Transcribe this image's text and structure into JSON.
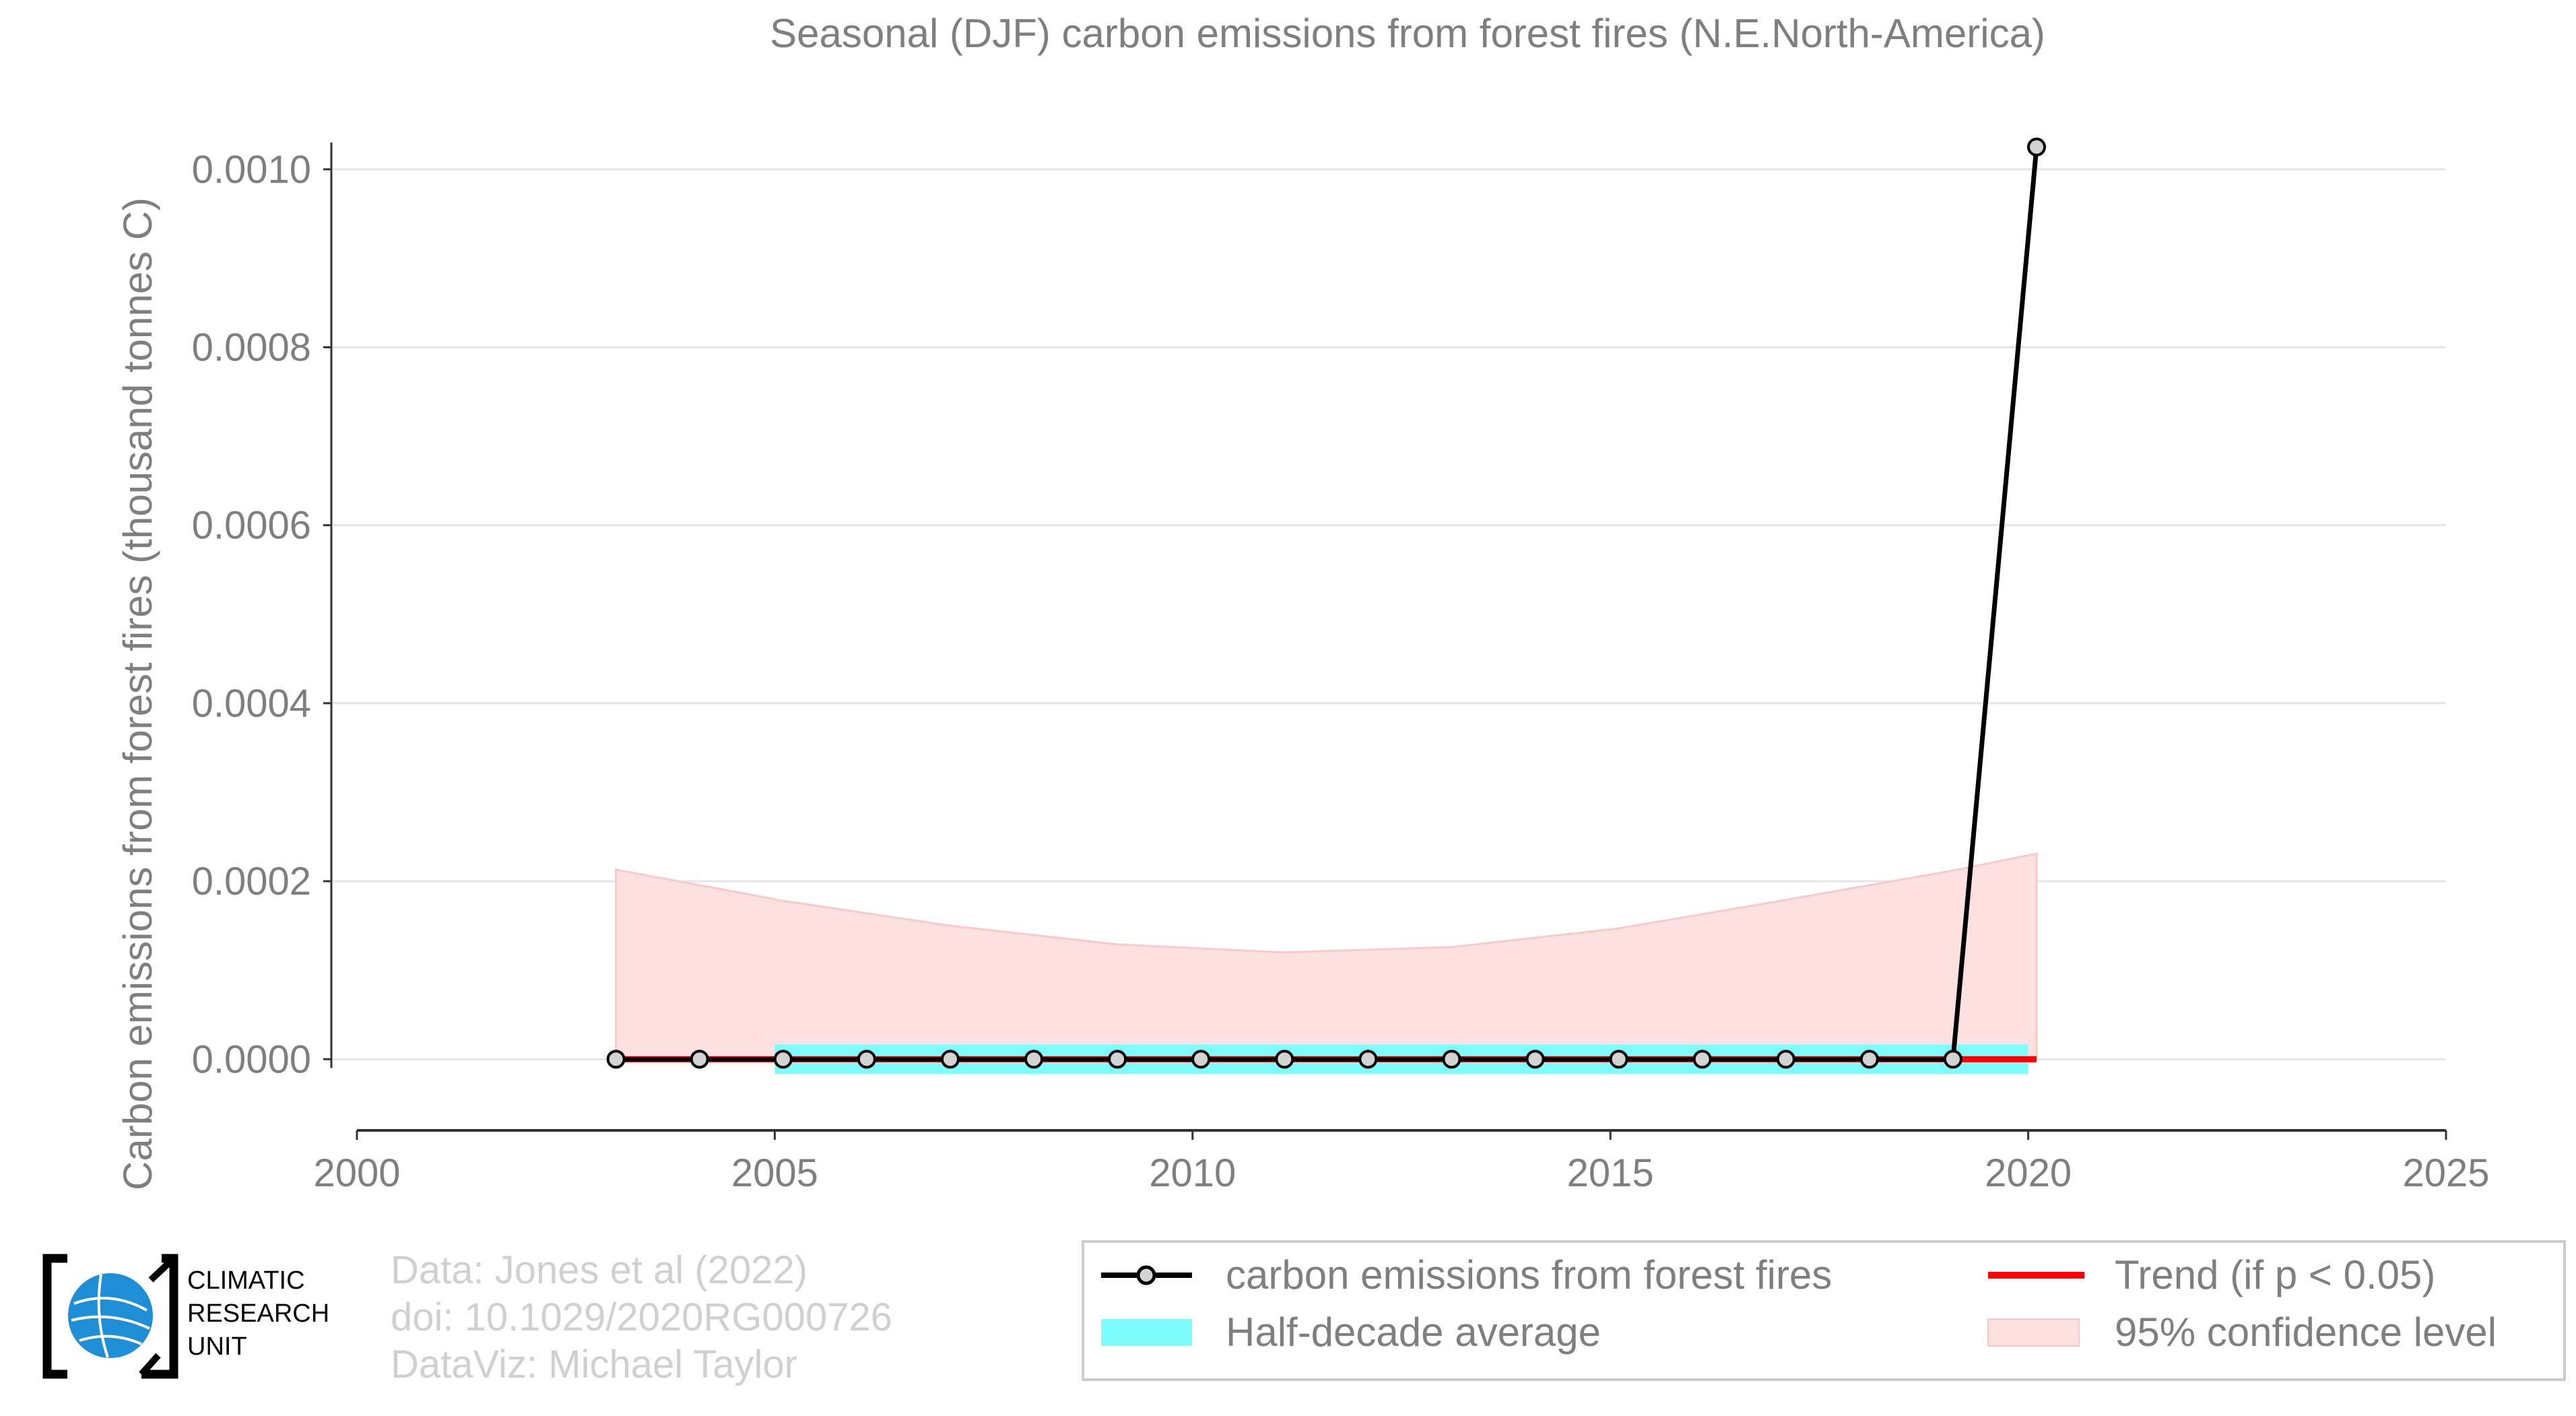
{
  "chart_data": {
    "type": "line",
    "title": "Seasonal (DJF) carbon emissions from forest fires (N.E.North-America)",
    "ylabel": "Carbon emissions from forest fires (thousand tonnes C)",
    "xlabel": "",
    "xlim": [
      2000,
      2025
    ],
    "ylim": [
      -8e-05,
      0.00106
    ],
    "x_ticks": [
      2000,
      2005,
      2010,
      2015,
      2020,
      2025
    ],
    "y_ticks": [
      {
        "value": 0.0,
        "label": "0.0000"
      },
      {
        "value": 0.0002,
        "label": "0.0002"
      },
      {
        "value": 0.0004,
        "label": "0.0004"
      },
      {
        "value": 0.0006,
        "label": "0.0006"
      },
      {
        "value": 0.0008,
        "label": "0.0008"
      },
      {
        "value": 0.001,
        "label": "0.0010"
      }
    ],
    "grid": "horizontal",
    "legend_position": "bottom-right",
    "series": [
      {
        "name": "carbon emissions from forest fires",
        "style": "line-marker",
        "color": "#000000",
        "marker_fill": "#d3d3d3",
        "x": [
          2003.1,
          2004.1,
          2005.1,
          2006.1,
          2007.1,
          2008.1,
          2009.1,
          2010.1,
          2011.1,
          2012.1,
          2013.1,
          2014.1,
          2015.1,
          2016.1,
          2017.1,
          2018.1,
          2019.1,
          2020.1
        ],
        "y": [
          0,
          0,
          0,
          0,
          0,
          0,
          0,
          0,
          0,
          0,
          0,
          0,
          0,
          0,
          0,
          0,
          0,
          0.001025
        ]
      },
      {
        "name": "Half-decade average",
        "style": "band",
        "color": "#7ffdfd",
        "x": [
          2005.0,
          2020.0
        ],
        "y": [
          0,
          0
        ]
      },
      {
        "name": "Trend (if p < 0.05)",
        "style": "line",
        "color": "#ff0000",
        "x": [
          2003.1,
          2020.1
        ],
        "y": [
          0,
          0
        ]
      },
      {
        "name": "95% confidence level",
        "style": "area",
        "color": "#fde0e0",
        "x": [
          2003.1,
          2005.1,
          2007.1,
          2009.1,
          2011.1,
          2013.1,
          2015.1,
          2017.1,
          2019.1,
          2020.1
        ],
        "upper": [
          0.000213,
          0.000178,
          0.00015,
          0.000129,
          0.00012,
          0.000126,
          0.000147,
          0.000179,
          0.000212,
          0.000231
        ],
        "lower": [
          0,
          0,
          0,
          0,
          0,
          0,
          0,
          0,
          0,
          0
        ]
      }
    ]
  },
  "credits": {
    "line1": "Data: Jones et al (2022)",
    "line2": "doi: 10.1029/2020RG000726",
    "line3": "DataViz: Michael Taylor"
  },
  "logo": {
    "line1": "CLIMATIC",
    "line2": "RESEARCH",
    "line3": "UNIT"
  },
  "colors": {
    "axis_text": "#7f7f7f",
    "credits_text": "#d0d0d0",
    "grid": "#e6e6e6"
  }
}
